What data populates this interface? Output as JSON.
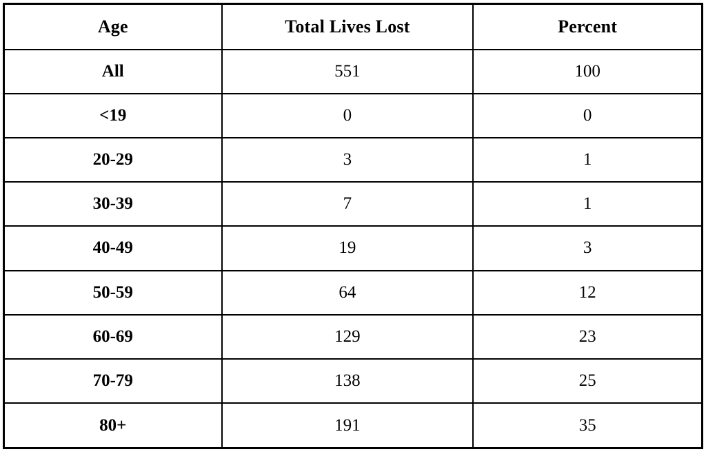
{
  "chart_data": {
    "type": "table",
    "columns": [
      "Age",
      "Total Lives Lost",
      "Percent"
    ],
    "rows": [
      [
        "All",
        551,
        100
      ],
      [
        "<19",
        0,
        0
      ],
      [
        "20-29",
        3,
        1
      ],
      [
        "30-39",
        7,
        1
      ],
      [
        "40-49",
        19,
        3
      ],
      [
        "50-59",
        64,
        12
      ],
      [
        "60-69",
        129,
        23
      ],
      [
        "70-79",
        138,
        25
      ],
      [
        "80+",
        191,
        35
      ]
    ],
    "title": "",
    "notes": "Table of total lives lost and percent by age group; header row and age-group column in bold; all text black serif on white with black grid borders"
  },
  "colors": {
    "border": "#000000",
    "text": "#000000",
    "background": "#ffffff"
  }
}
